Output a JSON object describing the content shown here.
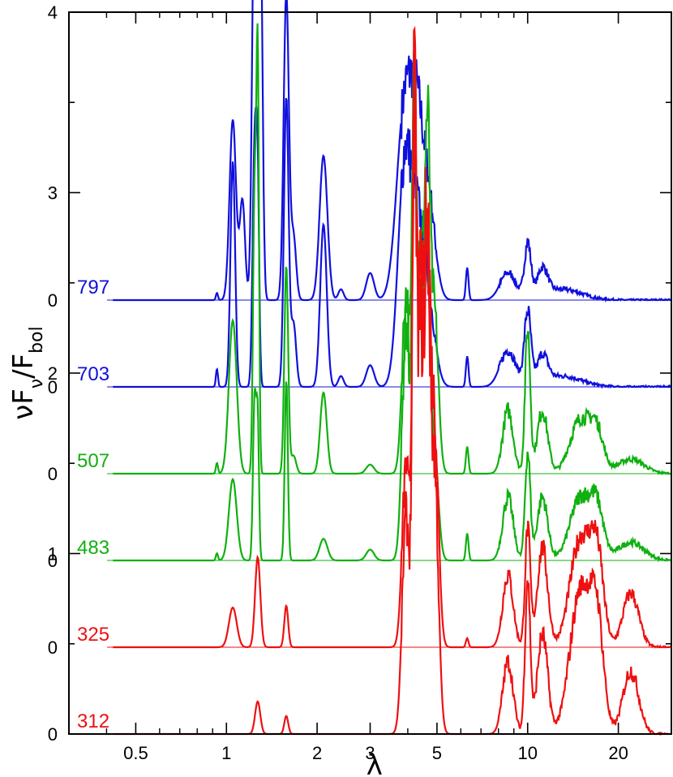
{
  "chart_data": {
    "type": "line",
    "xlabel": "λ",
    "ylabel": {
      "main": "νF",
      "sub1": "ν",
      "mid": "/F",
      "sub2": "bol"
    },
    "x_scale": "log",
    "xlim": [
      0.3,
      30
    ],
    "ylim": [
      0,
      4
    ],
    "x_ticks": [
      {
        "value": 0.5,
        "label": "0.5"
      },
      {
        "value": 1,
        "label": "1"
      },
      {
        "value": 2,
        "label": "2"
      },
      {
        "value": 3,
        "label": "3"
      },
      {
        "value": 5,
        "label": "5"
      },
      {
        "value": 10,
        "label": "10"
      },
      {
        "value": 20,
        "label": "20"
      }
    ],
    "y_tick_labels": [
      {
        "value": 0,
        "label": "0"
      },
      {
        "value": 1,
        "label": "1"
      },
      {
        "value": 2,
        "label": "2"
      },
      {
        "value": 3,
        "label": "3"
      },
      {
        "value": 4,
        "label": "4"
      }
    ],
    "offset_zero_labels": [
      "0",
      "0",
      "0",
      "0",
      "0"
    ],
    "colors": {
      "blue": "#1010dd",
      "green": "#10b010",
      "red": "#ee1010"
    },
    "series": [
      {
        "name": "797",
        "color": "blue",
        "baseline": 0.0,
        "peaks": [
          [
            0.93,
            0.04,
            0.008
          ],
          [
            1.05,
            1.0,
            0.025
          ],
          [
            1.13,
            0.55,
            0.02
          ],
          [
            1.24,
            2.35,
            0.018
          ],
          [
            1.27,
            3.0,
            0.012
          ],
          [
            1.3,
            1.9,
            0.015
          ],
          [
            1.58,
            1.7,
            0.02
          ],
          [
            1.67,
            0.35,
            0.02
          ],
          [
            2.1,
            0.8,
            0.03
          ],
          [
            2.4,
            0.06,
            0.02
          ],
          [
            3.0,
            0.15,
            0.03
          ],
          [
            3.9,
            1.05,
            0.06
          ],
          [
            4.3,
            0.8,
            0.05
          ],
          [
            4.7,
            0.5,
            0.05
          ],
          [
            6.3,
            0.18,
            0.01
          ],
          [
            8.6,
            0.15,
            0.06
          ],
          [
            10.0,
            0.3,
            0.025
          ],
          [
            11.2,
            0.15,
            0.04
          ],
          [
            13.0,
            0.06,
            0.15
          ]
        ]
      },
      {
        "name": "703",
        "color": "blue",
        "baseline": 0.0,
        "peaks": [
          [
            0.93,
            0.1,
            0.008
          ],
          [
            1.05,
            1.25,
            0.018
          ],
          [
            1.24,
            1.3,
            0.015
          ],
          [
            1.27,
            1.0,
            0.012
          ],
          [
            1.58,
            1.6,
            0.018
          ],
          [
            1.67,
            0.35,
            0.02
          ],
          [
            2.1,
            0.9,
            0.025
          ],
          [
            2.4,
            0.06,
            0.02
          ],
          [
            3.0,
            0.12,
            0.03
          ],
          [
            3.9,
            1.2,
            0.05
          ],
          [
            4.3,
            0.8,
            0.05
          ],
          [
            4.7,
            0.4,
            0.05
          ],
          [
            6.3,
            0.17,
            0.01
          ],
          [
            8.6,
            0.2,
            0.06
          ],
          [
            10.0,
            0.4,
            0.025
          ],
          [
            11.2,
            0.15,
            0.04
          ],
          [
            13.0,
            0.06,
            0.15
          ]
        ]
      },
      {
        "name": "507",
        "color": "green",
        "baseline": 0.0,
        "peaks": [
          [
            0.93,
            0.06,
            0.008
          ],
          [
            1.05,
            0.85,
            0.03
          ],
          [
            1.24,
            1.55,
            0.012
          ],
          [
            1.27,
            2.25,
            0.01
          ],
          [
            1.58,
            1.15,
            0.015
          ],
          [
            1.67,
            0.1,
            0.02
          ],
          [
            2.1,
            0.45,
            0.025
          ],
          [
            3.0,
            0.05,
            0.03
          ],
          [
            3.95,
            1.0,
            0.03
          ],
          [
            4.2,
            1.9,
            0.015
          ],
          [
            4.4,
            1.2,
            0.03
          ],
          [
            4.65,
            1.6,
            0.02
          ],
          [
            4.9,
            0.9,
            0.03
          ],
          [
            6.3,
            0.15,
            0.01
          ],
          [
            8.6,
            0.35,
            0.04
          ],
          [
            10.0,
            0.8,
            0.02
          ],
          [
            11.2,
            0.35,
            0.04
          ],
          [
            15.0,
            0.3,
            0.08
          ],
          [
            17.0,
            0.2,
            0.05
          ],
          [
            22.0,
            0.08,
            0.1
          ]
        ]
      },
      {
        "name": "483",
        "color": "green",
        "baseline": 0.0,
        "peaks": [
          [
            0.93,
            0.04,
            0.008
          ],
          [
            1.05,
            0.45,
            0.03
          ],
          [
            1.24,
            0.9,
            0.012
          ],
          [
            1.27,
            0.75,
            0.01
          ],
          [
            1.58,
            1.0,
            0.012
          ],
          [
            2.1,
            0.12,
            0.03
          ],
          [
            3.0,
            0.06,
            0.03
          ],
          [
            3.95,
            1.3,
            0.03
          ],
          [
            4.2,
            1.9,
            0.015
          ],
          [
            4.4,
            1.5,
            0.03
          ],
          [
            4.65,
            1.4,
            0.02
          ],
          [
            4.9,
            0.6,
            0.03
          ],
          [
            6.3,
            0.15,
            0.01
          ],
          [
            8.6,
            0.35,
            0.04
          ],
          [
            10.0,
            0.6,
            0.02
          ],
          [
            11.2,
            0.35,
            0.04
          ],
          [
            15.0,
            0.35,
            0.08
          ],
          [
            17.0,
            0.25,
            0.05
          ],
          [
            22.0,
            0.1,
            0.1
          ]
        ]
      },
      {
        "name": "325",
        "color": "red",
        "baseline": 0.0,
        "peaks": [
          [
            1.05,
            0.22,
            0.03
          ],
          [
            1.27,
            0.5,
            0.02
          ],
          [
            1.58,
            0.23,
            0.015
          ],
          [
            3.95,
            1.0,
            0.03
          ],
          [
            4.2,
            2.4,
            0.015
          ],
          [
            4.4,
            2.0,
            0.03
          ],
          [
            4.65,
            1.9,
            0.02
          ],
          [
            4.9,
            1.3,
            0.03
          ],
          [
            6.3,
            0.05,
            0.01
          ],
          [
            8.6,
            0.4,
            0.04
          ],
          [
            10.0,
            0.65,
            0.02
          ],
          [
            11.2,
            0.55,
            0.04
          ],
          [
            15.0,
            0.6,
            0.08
          ],
          [
            17.0,
            0.45,
            0.05
          ],
          [
            22.0,
            0.3,
            0.06
          ]
        ]
      },
      {
        "name": "312",
        "color": "red",
        "baseline": 0.0,
        "peaks": [
          [
            1.27,
            0.18,
            0.02
          ],
          [
            1.58,
            0.1,
            0.015
          ],
          [
            3.95,
            1.2,
            0.03
          ],
          [
            4.2,
            2.6,
            0.015
          ],
          [
            4.4,
            2.2,
            0.03
          ],
          [
            4.65,
            2.0,
            0.02
          ],
          [
            4.9,
            1.5,
            0.03
          ],
          [
            8.6,
            0.4,
            0.04
          ],
          [
            10.0,
            0.85,
            0.02
          ],
          [
            11.2,
            0.55,
            0.04
          ],
          [
            15.0,
            0.8,
            0.08
          ],
          [
            17.0,
            0.55,
            0.05
          ],
          [
            22.0,
            0.35,
            0.06
          ]
        ]
      }
    ]
  }
}
